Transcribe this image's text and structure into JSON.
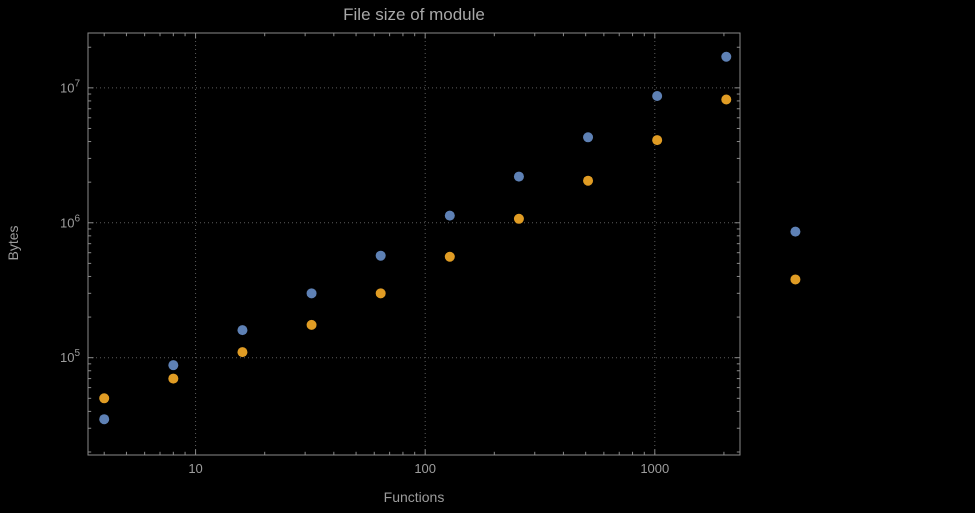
{
  "colors": {
    "background": "#000000",
    "frame": "#8a8a8a",
    "grid": "#5c5c5c",
    "text": "#9c9c9c",
    "title": "#a8a8a8",
    "series_blue": "#5e81b5",
    "series_orange": "#e09c24"
  },
  "chart_data": {
    "type": "scatter",
    "title": "File size of module",
    "xlabel": "Functions",
    "ylabel": "Bytes",
    "x_scale": "log",
    "y_scale": "log",
    "grid": "dotted",
    "legend": "none",
    "xlim": [
      3.4,
      2350
    ],
    "ylim": [
      19000,
      25500000
    ],
    "x_ticks": [
      10,
      100,
      1000
    ],
    "x_tick_labels": [
      "10",
      "100",
      "1000"
    ],
    "y_ticks": [
      100000,
      1000000,
      10000000
    ],
    "y_tick_base": "10",
    "y_tick_exponents": [
      "5",
      "6",
      "7"
    ],
    "series": [
      {
        "name": "series-blue",
        "color": "#5e81b5",
        "x": [
          4,
          8,
          16,
          32,
          64,
          128,
          256,
          512,
          1024,
          2048,
          4096
        ],
        "y": [
          35000,
          88000,
          160000,
          300000,
          570000,
          1130000,
          2200000,
          4300000,
          8700000,
          17000000,
          860000
        ]
      },
      {
        "name": "series-orange",
        "color": "#e09c24",
        "x": [
          4,
          8,
          16,
          32,
          64,
          128,
          256,
          512,
          1024,
          2048,
          4096
        ],
        "y": [
          50000,
          70000,
          110000,
          175000,
          300000,
          560000,
          1070000,
          2050000,
          4100000,
          8200000,
          380000
        ]
      }
    ]
  }
}
